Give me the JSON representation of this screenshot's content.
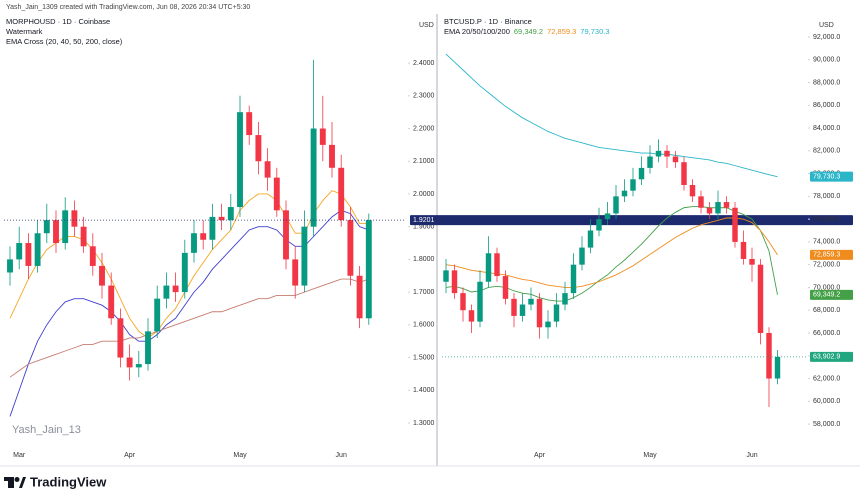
{
  "header": "Yash_Jain_1309 created with TradingView.com, Jun 08, 2026 20:34 UTC+5:30",
  "footer": "TradingView",
  "chart_data": [
    {
      "type": "candlestick",
      "title": "MORPHOUSD · 1D · Coinbase",
      "subtitles": [
        "Watermark",
        "EMA Cross (20, 40, 50, 200, close)"
      ],
      "watermark": "Yash_Jain_13",
      "y_unit": "USD",
      "categories": [
        null,
        "Mar",
        null,
        null,
        null,
        null,
        null,
        null,
        null,
        null,
        null,
        null,
        null,
        "Apr",
        null,
        null,
        null,
        null,
        null,
        null,
        null,
        null,
        null,
        null,
        null,
        "May",
        null,
        null,
        null,
        null,
        null,
        null,
        null,
        null,
        null,
        null,
        "Jun",
        null,
        null,
        null
      ],
      "open": [
        1.76,
        1.8,
        1.85,
        1.78,
        1.88,
        1.92,
        1.85,
        1.95,
        1.9,
        1.84,
        1.78,
        1.72,
        1.62,
        1.5,
        1.47,
        1.48,
        1.58,
        1.68,
        1.72,
        1.7,
        1.82,
        1.88,
        1.86,
        1.93,
        1.92,
        1.96,
        2.25,
        2.18,
        2.1,
        2.05,
        1.95,
        1.8,
        1.72,
        1.9,
        2.2,
        2.15,
        2.08,
        1.92,
        1.75,
        1.62
      ],
      "high": [
        1.84,
        1.9,
        1.88,
        1.92,
        1.97,
        1.95,
        1.99,
        1.98,
        1.93,
        1.88,
        1.82,
        1.76,
        1.65,
        1.54,
        1.52,
        1.62,
        1.72,
        1.76,
        1.76,
        1.86,
        1.92,
        1.92,
        1.97,
        1.97,
        2.0,
        2.3,
        2.27,
        2.22,
        2.14,
        2.08,
        1.98,
        1.84,
        1.95,
        2.41,
        2.3,
        2.22,
        2.12,
        1.96,
        1.78,
        1.94
      ],
      "low": [
        1.72,
        1.77,
        1.74,
        1.76,
        1.85,
        1.82,
        1.83,
        1.87,
        1.82,
        1.75,
        1.68,
        1.6,
        1.47,
        1.43,
        1.44,
        1.46,
        1.56,
        1.65,
        1.67,
        1.68,
        1.79,
        1.83,
        1.83,
        1.89,
        1.89,
        1.93,
        2.15,
        2.06,
        2.01,
        1.93,
        1.77,
        1.68,
        1.7,
        1.87,
        2.1,
        2.05,
        1.9,
        1.72,
        1.59,
        1.6
      ],
      "close": [
        1.8,
        1.85,
        1.78,
        1.88,
        1.92,
        1.85,
        1.95,
        1.9,
        1.84,
        1.78,
        1.72,
        1.62,
        1.5,
        1.47,
        1.48,
        1.58,
        1.68,
        1.72,
        1.7,
        1.82,
        1.88,
        1.86,
        1.93,
        1.92,
        1.96,
        2.25,
        2.18,
        2.1,
        2.05,
        1.95,
        1.8,
        1.72,
        1.9,
        2.2,
        2.15,
        2.08,
        1.92,
        1.75,
        1.62,
        1.9201
      ],
      "last_label": "1.9201",
      "up_color": "#089981",
      "down_color": "#f23645",
      "last_color": "#1e2a6e",
      "series": [
        {
          "color": "#f5a623",
          "values": [
            1.62,
            1.68,
            1.74,
            1.79,
            1.83,
            1.85,
            1.87,
            1.87,
            1.86,
            1.83,
            1.79,
            1.74,
            1.68,
            1.62,
            1.58,
            1.56,
            1.58,
            1.62,
            1.65,
            1.7,
            1.75,
            1.79,
            1.83,
            1.86,
            1.89,
            1.95,
            1.98,
            2.0,
            2.0,
            1.98,
            1.93,
            1.88,
            1.88,
            1.94,
            1.98,
            2.01,
            2.0,
            1.96,
            1.91,
            1.91
          ]
        },
        {
          "color": "#3f3fd0",
          "values": [
            1.32,
            1.4,
            1.48,
            1.55,
            1.6,
            1.64,
            1.67,
            1.68,
            1.68,
            1.67,
            1.66,
            1.64,
            1.61,
            1.57,
            1.55,
            1.55,
            1.57,
            1.6,
            1.62,
            1.66,
            1.7,
            1.73,
            1.77,
            1.8,
            1.83,
            1.86,
            1.89,
            1.9,
            1.9,
            1.89,
            1.86,
            1.84,
            1.84,
            1.87,
            1.9,
            1.93,
            1.95,
            1.94,
            1.9,
            1.89
          ]
        },
        {
          "color": "#c77b70",
          "values": [
            1.44,
            1.46,
            1.48,
            1.49,
            1.5,
            1.51,
            1.52,
            1.53,
            1.54,
            1.54,
            1.55,
            1.55,
            1.55,
            1.56,
            1.56,
            1.57,
            1.58,
            1.59,
            1.6,
            1.61,
            1.62,
            1.63,
            1.64,
            1.64,
            1.65,
            1.66,
            1.67,
            1.68,
            1.68,
            1.69,
            1.69,
            1.69,
            1.7,
            1.71,
            1.72,
            1.73,
            1.74,
            1.74,
            1.73,
            1.74
          ]
        }
      ],
      "ylim": [
        1.248,
        2.547
      ],
      "yticks": [
        {
          "value": 1.3,
          "label": "1.3000"
        },
        {
          "value": 1.4,
          "label": "1.4000"
        },
        {
          "value": 1.5,
          "label": "1.5000"
        },
        {
          "value": 1.6,
          "label": "1.6000"
        },
        {
          "value": 1.7,
          "label": "1.7000"
        },
        {
          "value": 1.8,
          "label": "1.8000"
        },
        {
          "value": 1.9,
          "label": "1.9000"
        },
        {
          "value": 2.0,
          "label": "2.0000"
        },
        {
          "value": 2.1,
          "label": "2.1000"
        },
        {
          "value": 2.2,
          "label": "2.2000"
        },
        {
          "value": 2.3,
          "label": "2.3000"
        },
        {
          "value": 2.4,
          "label": "2.4000"
        }
      ]
    },
    {
      "type": "candlestick",
      "title": "BTCUSD.P · 1D · Binance",
      "subtitles": [
        "EMA 20/50/100/200"
      ],
      "y_unit": "USD",
      "categories": [
        null,
        null,
        null,
        null,
        null,
        null,
        null,
        null,
        null,
        null,
        null,
        "Apr",
        null,
        null,
        null,
        null,
        null,
        null,
        null,
        null,
        null,
        null,
        null,
        null,
        "May",
        null,
        null,
        null,
        null,
        null,
        null,
        null,
        null,
        null,
        null,
        null,
        "Jun",
        null,
        null,
        null
      ],
      "open": [
        70500,
        71500,
        69500,
        68000,
        67000,
        70500,
        73000,
        71000,
        69000,
        67500,
        68500,
        69000,
        66500,
        67000,
        68500,
        69500,
        72000,
        73500,
        75000,
        76000,
        76500,
        78000,
        78500,
        79500,
        80500,
        81500,
        82000,
        81500,
        81000,
        79000,
        78000,
        77000,
        76500,
        77500,
        77000,
        74000,
        72500,
        72000,
        66000,
        62000
      ],
      "high": [
        72500,
        72000,
        70000,
        68500,
        71500,
        74500,
        73500,
        71500,
        69500,
        69500,
        70000,
        69500,
        68000,
        69500,
        70500,
        73000,
        74500,
        76000,
        77000,
        77500,
        79000,
        79500,
        80500,
        81500,
        82500,
        83000,
        82500,
        82000,
        81500,
        79500,
        78500,
        77500,
        78500,
        78000,
        77500,
        75000,
        73500,
        72500,
        66500,
        64500
      ],
      "low": [
        69500,
        69000,
        67000,
        66000,
        66500,
        70000,
        70500,
        68500,
        66500,
        67000,
        68000,
        65500,
        65500,
        66500,
        68000,
        69000,
        71500,
        73000,
        74500,
        75500,
        76000,
        77500,
        78000,
        79000,
        80000,
        81000,
        80500,
        80500,
        78500,
        77500,
        76500,
        76000,
        76000,
        76500,
        73500,
        72000,
        70500,
        65000,
        59500,
        61500
      ],
      "close": [
        71500,
        69500,
        68000,
        67000,
        70500,
        73000,
        71000,
        69000,
        67500,
        68500,
        69000,
        66500,
        67000,
        68500,
        69500,
        72000,
        73500,
        75000,
        76000,
        76500,
        78000,
        78500,
        79500,
        80500,
        81500,
        82000,
        81500,
        81000,
        79000,
        78000,
        77000,
        76500,
        77500,
        77000,
        74000,
        72500,
        72000,
        66000,
        62000,
        63902.9
      ],
      "last_label": "63,902.9",
      "up_color": "#089981",
      "down_color": "#f23645",
      "last_color": "#22a67f",
      "series": [
        {
          "color": "#43a047",
          "last_label": "69,349.2",
          "values": [
            70000,
            70100,
            69900,
            69600,
            69700,
            70000,
            70100,
            70000,
            69700,
            69500,
            69400,
            69100,
            68900,
            68800,
            68800,
            69100,
            69500,
            70000,
            70600,
            71100,
            71800,
            72400,
            73100,
            73800,
            74600,
            75400,
            76100,
            76600,
            77000,
            77100,
            77100,
            77000,
            77000,
            77000,
            76700,
            76400,
            76000,
            75000,
            73200,
            69349.2
          ]
        },
        {
          "color": "#f08c1e",
          "last_label": "72,859.3",
          "values": [
            72000,
            71900,
            71700,
            71500,
            71400,
            71300,
            71200,
            71100,
            70900,
            70700,
            70600,
            70400,
            70200,
            70100,
            70000,
            70000,
            70100,
            70300,
            70500,
            70800,
            71100,
            71500,
            71900,
            72400,
            72900,
            73400,
            73900,
            74400,
            74800,
            75200,
            75500,
            75700,
            75900,
            76100,
            76100,
            76000,
            75700,
            75000,
            74000,
            72859.3
          ]
        },
        {
          "color": "#2bb5c9",
          "last_label": "79,730.3",
          "values": [
            90500,
            89800,
            89100,
            88400,
            87700,
            87100,
            86500,
            85900,
            85400,
            84900,
            84500,
            84100,
            83700,
            83400,
            83100,
            82900,
            82700,
            82500,
            82300,
            82200,
            82100,
            82000,
            81900,
            81800,
            81800,
            81700,
            81700,
            81600,
            81500,
            81400,
            81300,
            81200,
            81000,
            80900,
            80700,
            80500,
            80300,
            80100,
            79900,
            79730.3
          ]
        }
      ],
      "ylim": [
        56600,
        93930
      ],
      "yticks": [
        {
          "value": 58000,
          "label": "58,000.0"
        },
        {
          "value": 60000,
          "label": "60,000.0"
        },
        {
          "value": 62000,
          "label": "62,000.0"
        },
        {
          "value": 64000,
          "label": "64,000.0"
        },
        {
          "value": 66000,
          "label": "66,000.0"
        },
        {
          "value": 68000,
          "label": "68,000.0"
        },
        {
          "value": 70000,
          "label": "70,000.0"
        },
        {
          "value": 72000,
          "label": "72,000.0"
        },
        {
          "value": 74000,
          "label": "74,000.0"
        },
        {
          "value": 76000,
          "label": "76,000.0"
        },
        {
          "value": 78000,
          "label": "78,000.0"
        },
        {
          "value": 80000,
          "label": "80,000.0"
        },
        {
          "value": 82000,
          "label": "82,000.0"
        },
        {
          "value": 84000,
          "label": "84,000.0"
        },
        {
          "value": 86000,
          "label": "86,000.0"
        },
        {
          "value": 88000,
          "label": "88,000.0"
        },
        {
          "value": 90000,
          "label": "90,000.0"
        },
        {
          "value": 92000,
          "label": "92,000.0"
        }
      ]
    }
  ]
}
